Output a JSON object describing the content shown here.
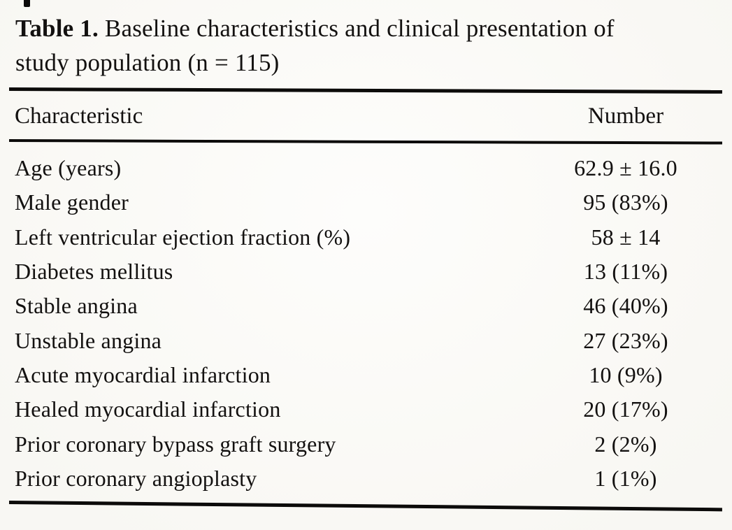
{
  "title": {
    "bold": "Table 1.",
    "line1_rest": " Baseline characteristics and clinical presentation of",
    "line2": "study population (n = 115)"
  },
  "table": {
    "header": {
      "characteristic": "Characteristic",
      "number": "Number"
    },
    "rows": [
      {
        "characteristic": "Age (years)",
        "number": "62.9 ± 16.0"
      },
      {
        "characteristic": "Male gender",
        "number": "95 (83%)"
      },
      {
        "characteristic": "Left ventricular ejection fraction (%)",
        "number": "58 ± 14"
      },
      {
        "characteristic": "Diabetes mellitus",
        "number": "13 (11%)"
      },
      {
        "characteristic": "Stable angina",
        "number": "46 (40%)"
      },
      {
        "characteristic": "Unstable angina",
        "number": "27 (23%)"
      },
      {
        "characteristic": "Acute myocardial infarction",
        "number": "10 (9%)"
      },
      {
        "characteristic": "Healed myocardial infarction",
        "number": "20 (17%)"
      },
      {
        "characteristic": "Prior coronary bypass graft surgery",
        "number": "2 (2%)"
      },
      {
        "characteristic": "Prior coronary angioplasty",
        "number": "1 (1%)"
      }
    ]
  },
  "colors": {
    "ink": "#131110",
    "paper": "#fbfaf6",
    "rule": "#0c0b0a"
  }
}
